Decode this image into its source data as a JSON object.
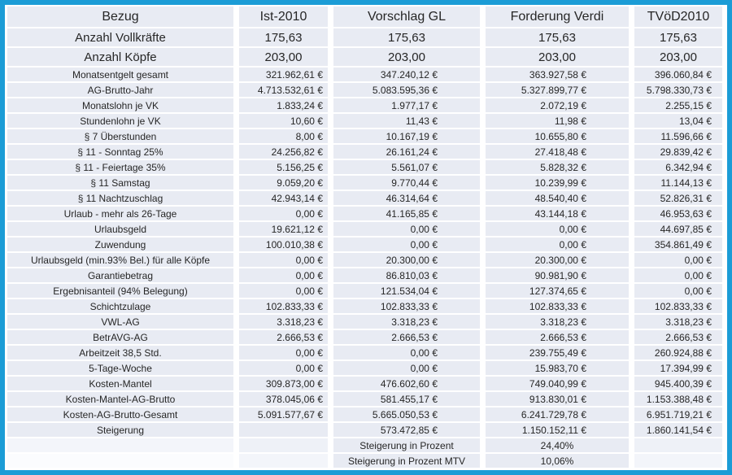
{
  "colors": {
    "frame_border": "#1b9cd6",
    "row_band": "#e8ebf3",
    "text": "#262626"
  },
  "table": {
    "columns": [
      "Bezug",
      "Ist-2010",
      "Vorschlag GL",
      "Forderung Verdi",
      "TVöD2010"
    ],
    "big_rows": [
      {
        "label": "Anzahl Vollkräfte",
        "values": [
          "175,63",
          "175,63",
          "175,63",
          "175,63"
        ]
      },
      {
        "label": "Anzahl Köpfe",
        "values": [
          "203,00",
          "203,00",
          "203,00",
          "203,00"
        ]
      }
    ],
    "rows": [
      {
        "label": "Monatsentgelt gesamt",
        "values": [
          "321.962,61 €",
          "347.240,12 €",
          "363.927,58 €",
          "396.060,84 €"
        ]
      },
      {
        "label": "AG-Brutto-Jahr",
        "values": [
          "4.713.532,61 €",
          "5.083.595,36 €",
          "5.327.899,77 €",
          "5.798.330,73 €"
        ]
      },
      {
        "label": "Monatslohn je VK",
        "values": [
          "1.833,24 €",
          "1.977,17 €",
          "2.072,19 €",
          "2.255,15 €"
        ]
      },
      {
        "label": "Stundenlohn je VK",
        "values": [
          "10,60 €",
          "11,43 €",
          "11,98 €",
          "13,04 €"
        ]
      },
      {
        "label": "§ 7 Überstunden",
        "values": [
          "8,00 €",
          "10.167,19 €",
          "10.655,80 €",
          "11.596,66 €"
        ]
      },
      {
        "label": "§ 11 - Sonntag 25%",
        "values": [
          "24.256,82 €",
          "26.161,24 €",
          "27.418,48 €",
          "29.839,42 €"
        ]
      },
      {
        "label": "§ 11 - Feiertage 35%",
        "values": [
          "5.156,25 €",
          "5.561,07 €",
          "5.828,32 €",
          "6.342,94 €"
        ]
      },
      {
        "label": "§ 11 Samstag",
        "values": [
          "9.059,20 €",
          "9.770,44 €",
          "10.239,99 €",
          "11.144,13 €"
        ]
      },
      {
        "label": "§ 11 Nachtzuschlag",
        "values": [
          "42.943,14 €",
          "46.314,64 €",
          "48.540,40 €",
          "52.826,31 €"
        ]
      },
      {
        "label": "Urlaub - mehr als 26-Tage",
        "values": [
          "0,00 €",
          "41.165,85 €",
          "43.144,18 €",
          "46.953,63 €"
        ]
      },
      {
        "label": "Urlaubsgeld",
        "values": [
          "19.621,12 €",
          "0,00 €",
          "0,00 €",
          "44.697,85 €"
        ]
      },
      {
        "label": "Zuwendung",
        "values": [
          "100.010,38 €",
          "0,00 €",
          "0,00 €",
          "354.861,49 €"
        ]
      },
      {
        "label": "Urlaubsgeld (min.93% Bel.) für alle Köpfe",
        "values": [
          "0,00 €",
          "20.300,00 €",
          "20.300,00 €",
          "0,00 €"
        ]
      },
      {
        "label": "Garantiebetrag",
        "values": [
          "0,00 €",
          "86.810,03 €",
          "90.981,90 €",
          "0,00 €"
        ]
      },
      {
        "label": "Ergebnisanteil (94% Belegung)",
        "values": [
          "0,00 €",
          "121.534,04 €",
          "127.374,65 €",
          "0,00 €"
        ]
      },
      {
        "label": "Schichtzulage",
        "values": [
          "102.833,33 €",
          "102.833,33 €",
          "102.833,33 €",
          "102.833,33 €"
        ]
      },
      {
        "label": "VWL-AG",
        "values": [
          "3.318,23 €",
          "3.318,23 €",
          "3.318,23 €",
          "3.318,23 €"
        ]
      },
      {
        "label": "BetrAVG-AG",
        "values": [
          "2.666,53 €",
          "2.666,53 €",
          "2.666,53 €",
          "2.666,53 €"
        ]
      },
      {
        "label": "Arbeitzeit 38,5 Std.",
        "values": [
          "0,00 €",
          "0,00 €",
          "239.755,49 €",
          "260.924,88 €"
        ]
      },
      {
        "label": "5-Tage-Woche",
        "values": [
          "0,00 €",
          "0,00 €",
          "15.983,70 €",
          "17.394,99 €"
        ]
      },
      {
        "label": "Kosten-Mantel",
        "values": [
          "309.873,00 €",
          "476.602,60 €",
          "749.040,99 €",
          "945.400,39 €"
        ]
      },
      {
        "label": "Kosten-Mantel-AG-Brutto",
        "values": [
          "378.045,06 €",
          "581.455,17 €",
          "913.830,01 €",
          "1.153.388,48 €"
        ]
      },
      {
        "label": "Kosten-AG-Brutto-Gesamt",
        "values": [
          "5.091.577,67 €",
          "5.665.050,53 €",
          "6.241.729,78 €",
          "6.951.719,21 €"
        ]
      },
      {
        "label": "Steigerung",
        "values": [
          "",
          "573.472,85 €",
          "1.150.152,11 €",
          "1.860.141,54 €"
        ]
      }
    ],
    "footer_rows": [
      {
        "label": "Steigerung in Prozent",
        "value": "24,40%"
      },
      {
        "label": "Steigerung in Prozent MTV",
        "value": "10,06%"
      }
    ]
  }
}
